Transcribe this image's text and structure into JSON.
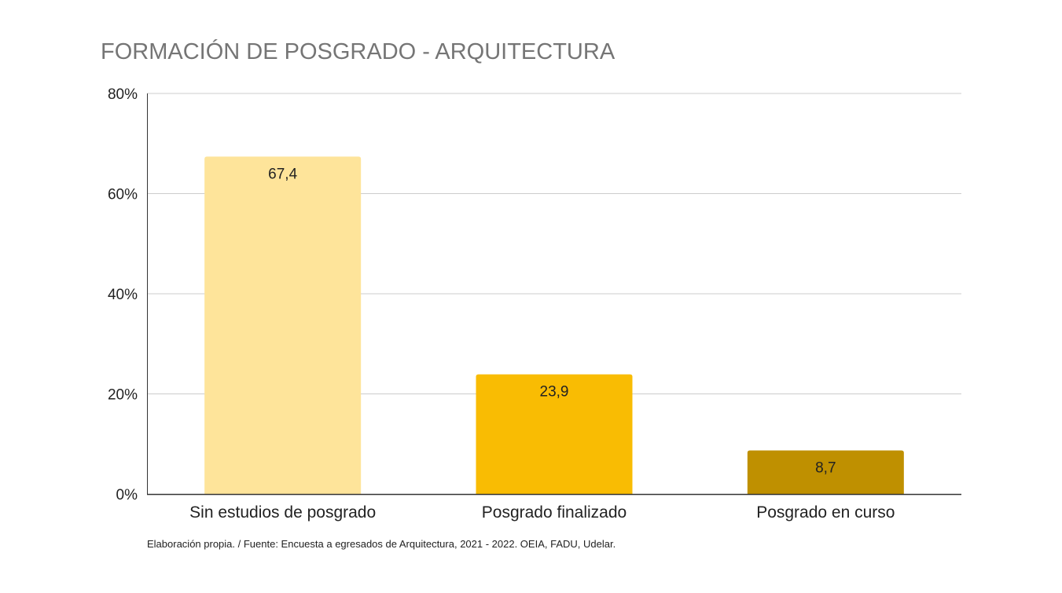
{
  "chart_data": {
    "type": "bar",
    "title": "FORMACIÓN DE POSGRADO - ARQUITECTURA",
    "categories": [
      "Sin estudios de posgrado",
      "Posgrado finalizado",
      "Posgrado en curso"
    ],
    "values": [
      67.4,
      23.9,
      8.7
    ],
    "data_labels": [
      "67,4",
      "23,9",
      "8,7"
    ],
    "colors": [
      "#fee49a",
      "#f9bc03",
      "#bf9000"
    ],
    "ylim": [
      0,
      80
    ],
    "yticks": [
      0,
      20,
      40,
      60,
      80
    ],
    "ytick_labels": [
      "0%",
      "20%",
      "40%",
      "60%",
      "80%"
    ],
    "xlabel": "",
    "ylabel": "",
    "grid": true,
    "legend": "none"
  },
  "note": "Elaboración propia. / Fuente: Encuesta a egresados de Arquitectura, 2021 - 2022. OEIA, FADU, Udelar."
}
